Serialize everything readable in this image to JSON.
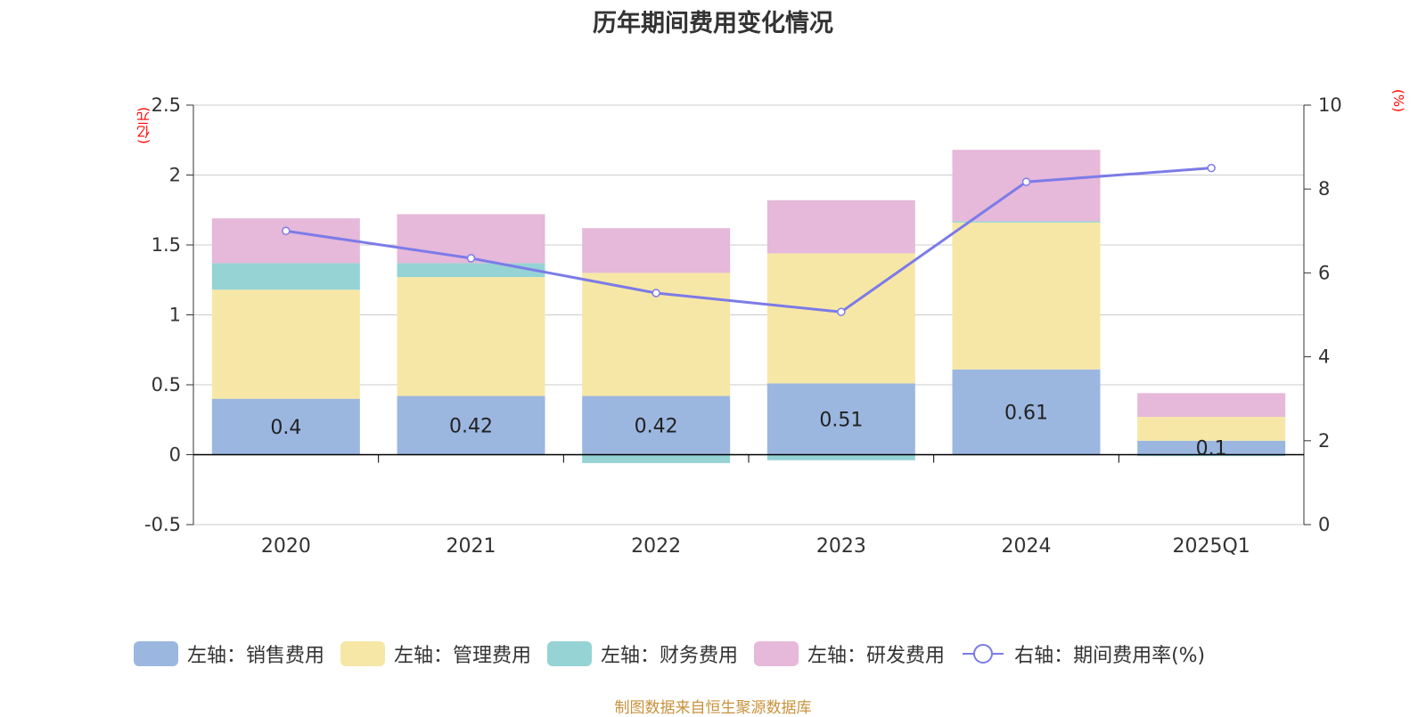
{
  "chart_data": {
    "type": "bar",
    "title": "历年期间费用变化情况",
    "left_unit": "(亿元)",
    "right_unit": "(%)",
    "categories": [
      "2020",
      "2021",
      "2022",
      "2023",
      "2024",
      "2025Q1"
    ],
    "stacked": true,
    "left_axis": {
      "ylim": [
        -0.5,
        2.5
      ],
      "ticks": [
        "-0.5",
        "0",
        "0.5",
        "1",
        "1.5",
        "2",
        "2.5"
      ]
    },
    "right_axis": {
      "ylim": [
        0,
        10
      ],
      "ticks": [
        "0",
        "2",
        "4",
        "6",
        "8",
        "10"
      ]
    },
    "grid": true,
    "series": [
      {
        "name": "左轴：销售费用",
        "axis": "left",
        "color": "#9bb7e0",
        "values": [
          0.4,
          0.42,
          0.42,
          0.51,
          0.61,
          0.1
        ],
        "labels": [
          "0.4",
          "0.42",
          "0.42",
          "0.51",
          "0.61",
          "0.1"
        ]
      },
      {
        "name": "左轴：管理费用",
        "axis": "left",
        "color": "#f7e7a6",
        "values": [
          0.78,
          0.85,
          0.88,
          0.93,
          1.05,
          0.17
        ]
      },
      {
        "name": "左轴：财务费用",
        "axis": "left",
        "color": "#95d3d4",
        "values": [
          0.19,
          0.1,
          -0.06,
          -0.04,
          0.01,
          -0.01
        ]
      },
      {
        "name": "左轴：研发费用",
        "axis": "left",
        "color": "#e6b8d9",
        "values": [
          0.32,
          0.35,
          0.32,
          0.38,
          0.51,
          0.17
        ]
      },
      {
        "name": "右轴：期间费用率(%)",
        "axis": "right",
        "type": "line",
        "color": "#7b7be8",
        "values": [
          7.0,
          6.35,
          5.52,
          5.07,
          8.17,
          8.5
        ]
      }
    ],
    "legend_position": "bottom"
  },
  "footer": "制图数据来自恒生聚源数据库"
}
